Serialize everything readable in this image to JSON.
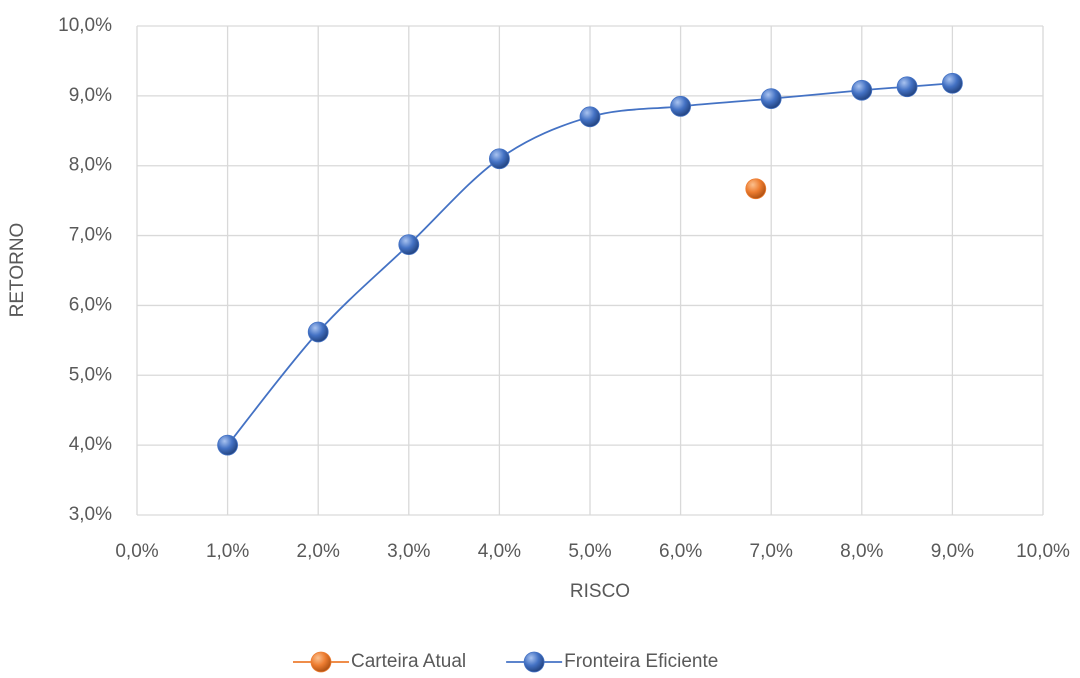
{
  "chart_data": {
    "type": "scatter",
    "x_label": "RISCO",
    "y_label": "RETORNO",
    "xlim": [
      0,
      10
    ],
    "ylim": [
      3,
      10
    ],
    "xticks": [
      {
        "value": 0,
        "label": "0,0%"
      },
      {
        "value": 1,
        "label": "1,0%"
      },
      {
        "value": 2,
        "label": "2,0%"
      },
      {
        "value": 3,
        "label": "3,0%"
      },
      {
        "value": 4,
        "label": "4,0%"
      },
      {
        "value": 5,
        "label": "5,0%"
      },
      {
        "value": 6,
        "label": "6,0%"
      },
      {
        "value": 7,
        "label": "7,0%"
      },
      {
        "value": 8,
        "label": "8,0%"
      },
      {
        "value": 9,
        "label": "9,0%"
      },
      {
        "value": 10,
        "label": "10,0%"
      }
    ],
    "yticks": [
      {
        "value": 3,
        "label": "3,0%"
      },
      {
        "value": 4,
        "label": "4,0%"
      },
      {
        "value": 5,
        "label": "5,0%"
      },
      {
        "value": 6,
        "label": "6,0%"
      },
      {
        "value": 7,
        "label": "7,0%"
      },
      {
        "value": 8,
        "label": "8,0%"
      },
      {
        "value": 9,
        "label": "9,0%"
      },
      {
        "value": 10,
        "label": "10,0%"
      }
    ],
    "grid": true,
    "legend": "bottom",
    "series": [
      {
        "name": "Carteira Atual",
        "color": "#ed7d31",
        "smooth": false,
        "x": [
          6.83
        ],
        "values": [
          7.67
        ]
      },
      {
        "name": "Fronteira Eficiente",
        "color": "#4472c4",
        "smooth": true,
        "x": [
          1,
          2,
          3,
          4,
          5,
          6,
          7,
          8,
          8.5,
          9
        ],
        "values": [
          4.0,
          5.62,
          6.87,
          8.1,
          8.7,
          8.85,
          8.96,
          9.08,
          9.13,
          9.18
        ]
      }
    ]
  }
}
